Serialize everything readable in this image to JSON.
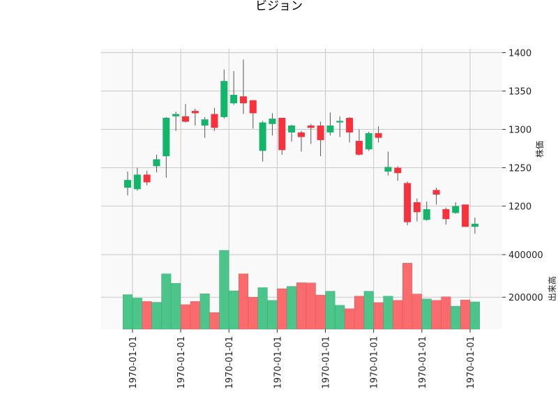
{
  "chart_data": {
    "type": "candlestick",
    "title": "ビジョン",
    "price_panel": {
      "ylabel": "株価",
      "ylim": [
        1145,
        1405
      ],
      "yticks": [
        1200,
        1250,
        1300,
        1350,
        1400
      ]
    },
    "volume_panel": {
      "ylabel": "出来高",
      "ylim": [
        50000,
        430000
      ],
      "yticks": [
        200000,
        400000
      ]
    },
    "x_tick_labels": [
      "1970-01-01",
      "1970-01-01",
      "1970-01-01",
      "1970-01-01",
      "1970-01-01",
      "1970-01-01",
      "1970-01-01",
      "1970-01-01"
    ],
    "x_tick_positions": [
      0.5,
      5.5,
      10.5,
      15.5,
      20.5,
      25.5,
      30.5,
      35.5
    ],
    "colors": {
      "up": "#13b56b",
      "down": "#f7323c",
      "up_volume": "#4cc58b",
      "down_volume": "#fa6b6d",
      "wick": "#555555",
      "grid": "#c8c8c8",
      "panel_bg": "#f9f9f9"
    },
    "candles": [
      {
        "o": 1224,
        "h": 1245,
        "l": 1214,
        "c": 1234,
        "v": 212000
      },
      {
        "o": 1222,
        "h": 1250,
        "l": 1220,
        "c": 1241,
        "v": 196000
      },
      {
        "o": 1241,
        "h": 1246,
        "l": 1227,
        "c": 1231,
        "v": 180000
      },
      {
        "o": 1252,
        "h": 1267,
        "l": 1244,
        "c": 1261,
        "v": 176000
      },
      {
        "o": 1265,
        "h": 1316,
        "l": 1237,
        "c": 1315,
        "v": 310000
      },
      {
        "o": 1317,
        "h": 1323,
        "l": 1298,
        "c": 1320,
        "v": 265000
      },
      {
        "o": 1317,
        "h": 1333,
        "l": 1309,
        "c": 1310,
        "v": 165000
      },
      {
        "o": 1324,
        "h": 1327,
        "l": 1305,
        "c": 1321,
        "v": 180000
      },
      {
        "o": 1305,
        "h": 1316,
        "l": 1289,
        "c": 1313,
        "v": 216000
      },
      {
        "o": 1320,
        "h": 1328,
        "l": 1298,
        "c": 1302,
        "v": 128000
      },
      {
        "o": 1316,
        "h": 1378,
        "l": 1314,
        "c": 1363,
        "v": 420000
      },
      {
        "o": 1334,
        "h": 1376,
        "l": 1332,
        "c": 1345,
        "v": 230000
      },
      {
        "o": 1343,
        "h": 1391,
        "l": 1320,
        "c": 1334,
        "v": 310000
      },
      {
        "o": 1338,
        "h": 1338,
        "l": 1301,
        "c": 1321,
        "v": 200000
      },
      {
        "o": 1272,
        "h": 1311,
        "l": 1258,
        "c": 1309,
        "v": 245000
      },
      {
        "o": 1307,
        "h": 1321,
        "l": 1292,
        "c": 1314,
        "v": 185000
      },
      {
        "o": 1315,
        "h": 1315,
        "l": 1267,
        "c": 1273,
        "v": 240000
      },
      {
        "o": 1296,
        "h": 1306,
        "l": 1284,
        "c": 1305,
        "v": 251000
      },
      {
        "o": 1296,
        "h": 1298,
        "l": 1271,
        "c": 1290,
        "v": 268000
      },
      {
        "o": 1305,
        "h": 1307,
        "l": 1281,
        "c": 1302,
        "v": 267000
      },
      {
        "o": 1305,
        "h": 1310,
        "l": 1265,
        "c": 1286,
        "v": 210000
      },
      {
        "o": 1296,
        "h": 1322,
        "l": 1292,
        "c": 1305,
        "v": 228000
      },
      {
        "o": 1309,
        "h": 1317,
        "l": 1290,
        "c": 1311,
        "v": 162000
      },
      {
        "o": 1315,
        "h": 1316,
        "l": 1283,
        "c": 1296,
        "v": 146000
      },
      {
        "o": 1285,
        "h": 1300,
        "l": 1266,
        "c": 1267,
        "v": 205000
      },
      {
        "o": 1274,
        "h": 1297,
        "l": 1272,
        "c": 1295,
        "v": 228000
      },
      {
        "o": 1295,
        "h": 1304,
        "l": 1283,
        "c": 1289,
        "v": 175000
      },
      {
        "o": 1245,
        "h": 1271,
        "l": 1240,
        "c": 1251,
        "v": 205000
      },
      {
        "o": 1250,
        "h": 1252,
        "l": 1233,
        "c": 1243,
        "v": 185000
      },
      {
        "o": 1230,
        "h": 1232,
        "l": 1175,
        "c": 1179,
        "v": 360000
      },
      {
        "o": 1205,
        "h": 1210,
        "l": 1180,
        "c": 1192,
        "v": 215000
      },
      {
        "o": 1182,
        "h": 1206,
        "l": 1181,
        "c": 1196,
        "v": 192000
      },
      {
        "o": 1221,
        "h": 1224,
        "l": 1202,
        "c": 1215,
        "v": 185000
      },
      {
        "o": 1196,
        "h": 1198,
        "l": 1176,
        "c": 1183,
        "v": 202000
      },
      {
        "o": 1191,
        "h": 1205,
        "l": 1190,
        "c": 1200,
        "v": 158000
      },
      {
        "o": 1202,
        "h": 1202,
        "l": 1173,
        "c": 1173,
        "v": 187000
      },
      {
        "o": 1173,
        "h": 1185,
        "l": 1164,
        "c": 1177,
        "v": 178000
      }
    ]
  }
}
